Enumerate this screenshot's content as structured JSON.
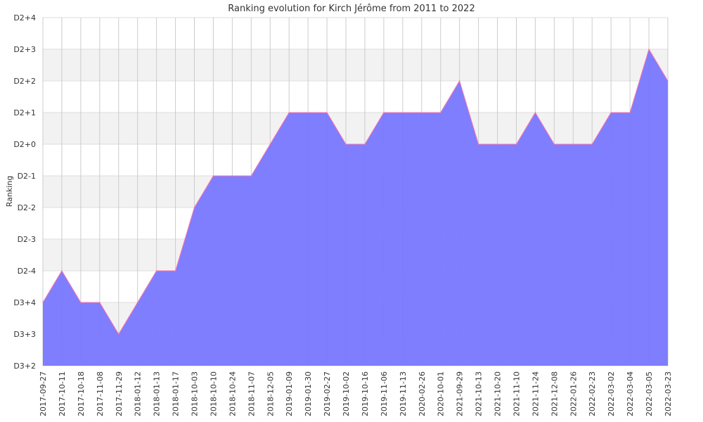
{
  "chart_data": {
    "type": "area",
    "title": "Ranking evolution for Kirch Jérôme from 2011 to 2022",
    "ylabel": "Ranking",
    "xlabel": "",
    "y_ticks": [
      "D3+2",
      "D3+3",
      "D3+4",
      "D2-4",
      "D2-3",
      "D2-2",
      "D2-1",
      "D2+0",
      "D2+1",
      "D2+2",
      "D2+3",
      "D2+4"
    ],
    "x": [
      "2017-09-27",
      "2017-10-11",
      "2017-10-18",
      "2017-11-08",
      "2017-11-29",
      "2018-01-12",
      "2018-01-13",
      "2018-01-17",
      "2018-10-03",
      "2018-10-10",
      "2018-10-24",
      "2018-11-07",
      "2018-12-05",
      "2019-01-09",
      "2019-01-30",
      "2019-02-27",
      "2019-10-02",
      "2019-10-16",
      "2019-11-06",
      "2019-11-13",
      "2020-02-26",
      "2020-10-01",
      "2021-09-29",
      "2021-10-13",
      "2021-10-20",
      "2021-11-10",
      "2021-11-24",
      "2021-12-08",
      "2022-01-26",
      "2022-02-23",
      "2022-03-02",
      "2022-03-04",
      "2022-03-05",
      "2022-03-23"
    ],
    "series": [
      {
        "values": [
          "D3+4",
          "D2-4",
          "D3+4",
          "D3+4",
          "D3+3",
          "D3+4",
          "D2-4",
          "D2-4",
          "D2-2",
          "D2-1",
          "D2-1",
          "D2-1",
          "D2+0",
          "D2+1",
          "D2+1",
          "D2+1",
          "D2+0",
          "D2+0",
          "D2+1",
          "D2+1",
          "D2+1",
          "D2+1",
          "D2+2",
          "D2+0",
          "D2+0",
          "D2+0",
          "D2+1",
          "D2+0",
          "D2+0",
          "D2+0",
          "D2+1",
          "D2+1",
          "D2+3",
          "D2+2"
        ]
      }
    ],
    "fill_color": "#7777ff",
    "line_color": "#ff77aa",
    "grid": true,
    "legend": "none"
  }
}
